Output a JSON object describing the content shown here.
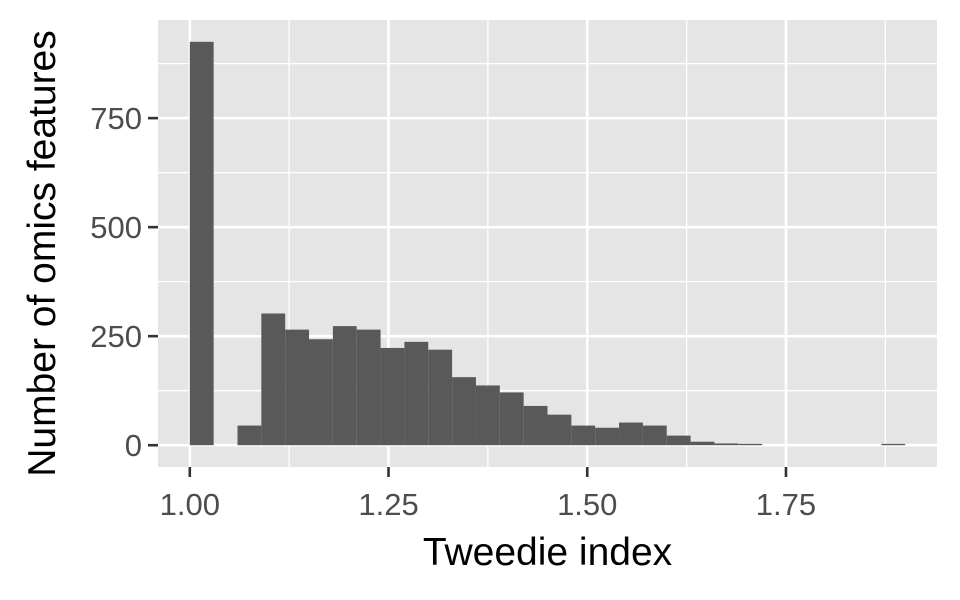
{
  "chart_data": {
    "type": "bar",
    "title": "",
    "xlabel": "Tweedie index",
    "ylabel": "Number of omics features",
    "xlim": [
      0.96,
      1.94
    ],
    "ylim": [
      -50,
      975
    ],
    "x_ticks": [
      1.0,
      1.25,
      1.5,
      1.75
    ],
    "x_tick_labels": [
      "1.00",
      "1.25",
      "1.50",
      "1.75"
    ],
    "y_ticks": [
      0,
      250,
      500,
      750
    ],
    "y_tick_labels": [
      "0",
      "250",
      "500",
      "750"
    ],
    "x_minor_ticks": [
      1.125,
      1.375,
      1.625,
      1.875
    ],
    "y_minor_ticks": [
      125,
      375,
      625,
      875
    ],
    "grid": true,
    "bin_width": 0.03,
    "bins": [
      {
        "x": 1.015,
        "count": 925
      },
      {
        "x": 1.045,
        "count": 0
      },
      {
        "x": 1.075,
        "count": 45
      },
      {
        "x": 1.105,
        "count": 302
      },
      {
        "x": 1.135,
        "count": 265
      },
      {
        "x": 1.165,
        "count": 243
      },
      {
        "x": 1.195,
        "count": 273
      },
      {
        "x": 1.225,
        "count": 265
      },
      {
        "x": 1.255,
        "count": 223
      },
      {
        "x": 1.285,
        "count": 237
      },
      {
        "x": 1.315,
        "count": 219
      },
      {
        "x": 1.345,
        "count": 156
      },
      {
        "x": 1.375,
        "count": 137
      },
      {
        "x": 1.405,
        "count": 121
      },
      {
        "x": 1.435,
        "count": 90
      },
      {
        "x": 1.465,
        "count": 70
      },
      {
        "x": 1.495,
        "count": 45
      },
      {
        "x": 1.525,
        "count": 40
      },
      {
        "x": 1.555,
        "count": 52
      },
      {
        "x": 1.585,
        "count": 45
      },
      {
        "x": 1.615,
        "count": 22
      },
      {
        "x": 1.645,
        "count": 8
      },
      {
        "x": 1.675,
        "count": 4
      },
      {
        "x": 1.705,
        "count": 3
      },
      {
        "x": 1.735,
        "count": 0
      },
      {
        "x": 1.765,
        "count": 0
      },
      {
        "x": 1.795,
        "count": 0
      },
      {
        "x": 1.825,
        "count": 0
      },
      {
        "x": 1.855,
        "count": 0
      },
      {
        "x": 1.885,
        "count": 3
      }
    ],
    "colors": {
      "bar": "#595959",
      "panel": "#e5e5e5",
      "grid": "#ffffff",
      "tick": "#333333",
      "tick_label": "#4d4d4d"
    }
  }
}
